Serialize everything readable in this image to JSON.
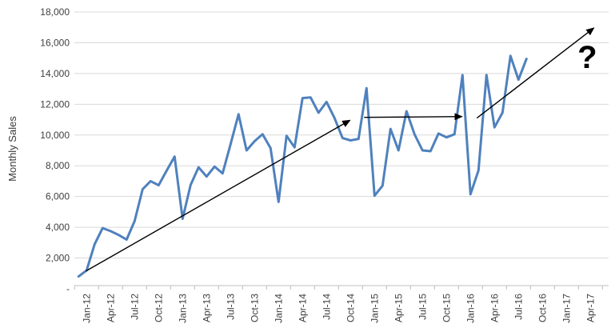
{
  "chart_data": {
    "type": "line",
    "title": "",
    "xlabel": "",
    "ylabel": "Monthly Sales",
    "grid": "horizontal",
    "legend": "none",
    "y_axis": {
      "min": 0,
      "max": 18000,
      "tick_interval": 2000,
      "tick_values": [
        18000,
        16000,
        14000,
        12000,
        10000,
        8000,
        6000,
        4000,
        2000,
        0
      ],
      "tick_labels": [
        "18,000",
        "16,000",
        "14,000",
        "12,000",
        "10,000",
        "8,000",
        "6,000",
        "4,000",
        "2,000",
        "-"
      ]
    },
    "x_axis": {
      "tick_labels": [
        "Jan-12",
        "Apr-12",
        "Jul-12",
        "Oct-12",
        "Jan-13",
        "Apr-13",
        "Jul-13",
        "Oct-13",
        "Jan-14",
        "Apr-14",
        "Jul-14",
        "Oct-14",
        "Jan-15",
        "Apr-15",
        "Jul-15",
        "Oct-15",
        "Jan-16",
        "Apr-16",
        "Jul-16",
        "Oct-16",
        "Jan-17",
        "Apr-17"
      ],
      "months_between_labels": 3,
      "label_rotation_degrees": -90
    },
    "series": [
      {
        "name": "Monthly Sales",
        "color": "#4F81BD",
        "months": [
          "Jan-12",
          "Feb-12",
          "Mar-12",
          "Apr-12",
          "May-12",
          "Jun-12",
          "Jul-12",
          "Aug-12",
          "Sep-12",
          "Oct-12",
          "Nov-12",
          "Dec-12",
          "Jan-13",
          "Feb-13",
          "Mar-13",
          "Apr-13",
          "May-13",
          "Jun-13",
          "Jul-13",
          "Aug-13",
          "Sep-13",
          "Oct-13",
          "Nov-13",
          "Dec-13",
          "Jan-14",
          "Feb-14",
          "Mar-14",
          "Apr-14",
          "May-14",
          "Jun-14",
          "Jul-14",
          "Aug-14",
          "Sep-14",
          "Oct-14",
          "Nov-14",
          "Dec-14",
          "Jan-15",
          "Feb-15",
          "Mar-15",
          "Apr-15",
          "May-15",
          "Jun-15",
          "Jul-15",
          "Aug-15",
          "Sep-15",
          "Oct-15",
          "Nov-15",
          "Dec-15",
          "Jan-16",
          "Feb-16",
          "Mar-16",
          "Apr-16",
          "May-16",
          "Jun-16",
          "Jul-16",
          "Aug-16",
          "Sep-16"
        ],
        "values": [
          800,
          1200,
          2900,
          3950,
          3750,
          3500,
          3200,
          4400,
          6470,
          7000,
          6730,
          7680,
          8600,
          4550,
          6750,
          7900,
          7300,
          7950,
          7500,
          9400,
          11350,
          9000,
          9600,
          10050,
          9150,
          5650,
          9950,
          9200,
          12400,
          12450,
          11450,
          12150,
          11100,
          9800,
          9650,
          9750,
          13050,
          6050,
          6700,
          10400,
          9000,
          11550,
          10050,
          9000,
          8950,
          10100,
          9850,
          10050,
          13900,
          6150,
          7700,
          13900,
          10500,
          11450,
          15150,
          13600,
          14950
        ]
      }
    ],
    "annotations": {
      "trend_arrows": [
        {
          "name": "rising-trend-2012-2014",
          "from": {
            "month_index": 0.9,
            "value": 1150
          },
          "to": {
            "month_index": 33.9,
            "value": 10950
          }
        },
        {
          "name": "flat-trend-2015",
          "from": {
            "month_index": 35.7,
            "value": 11150
          },
          "to": {
            "month_index": 47.9,
            "value": 11200
          }
        },
        {
          "name": "rising-trend-2016-2017",
          "from": {
            "month_index": 49.8,
            "value": 11100
          },
          "to": {
            "month_index": 64.4,
            "value": 16950
          }
        }
      ],
      "question_mark": {
        "text": "?",
        "month_index": 63.6,
        "baseline_value": 14350
      }
    },
    "colors": {
      "line": "#4F81BD",
      "gridline": "#D9D9D9",
      "axis": "#BFBFBF",
      "tick_label": "#3f3f3f",
      "annotation": "#000000",
      "background": "#FFFFFF"
    }
  }
}
